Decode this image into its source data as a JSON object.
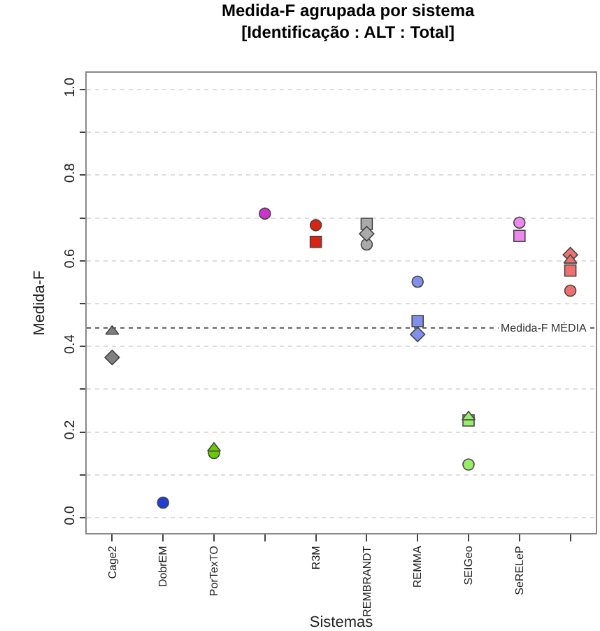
{
  "chart_data": {
    "type": "scatter",
    "title": "Medida-F agrupada por sistema\n[Identificação : ALT : Total]",
    "xlabel": "Sistemas",
    "ylabel": "Medida-F",
    "categories": [
      "Cage2",
      "DobrEM",
      "PorTexTO",
      null,
      "R3M",
      "REMBRANDT",
      "REMMA",
      "SEIGeo",
      "SeRELeP",
      null
    ],
    "series": [
      {
        "marker": "circle",
        "values": [
          null,
          0.035,
          0.151,
          0.71,
          0.683,
          0.638,
          0.551,
          0.124,
          0.689,
          0.53
        ],
        "colors": [
          "#808080",
          "#1f3fd8",
          "#66cc00",
          "#cc33cc",
          "#dd2211",
          "#aaaaaa",
          "#7f8fea",
          "#99ee66",
          "#ee88ee",
          "#f07070"
        ]
      },
      {
        "marker": "square",
        "values": [
          null,
          null,
          null,
          null,
          0.644,
          0.686,
          0.459,
          0.227,
          0.658,
          0.577
        ],
        "colors": [
          "#808080",
          "#1f3fd8",
          "#66cc00",
          "#cc33cc",
          "#dd2211",
          "#aaaaaa",
          "#7f8fea",
          "#99ee66",
          "#ee88ee",
          "#f07070"
        ]
      },
      {
        "marker": "diamond",
        "values": [
          0.374,
          null,
          null,
          null,
          null,
          0.663,
          0.428,
          null,
          null,
          0.614
        ],
        "colors": [
          "#808080",
          "#1f3fd8",
          "#66cc00",
          "#cc33cc",
          "#dd2211",
          "#aaaaaa",
          "#7f8fea",
          "#99ee66",
          "#ee88ee",
          "#f07070"
        ]
      },
      {
        "marker": "triangle",
        "values": [
          0.435,
          null,
          0.162,
          null,
          null,
          null,
          null,
          0.235,
          null,
          0.601
        ],
        "colors": [
          "#808080",
          "#1f3fd8",
          "#66cc00",
          "#cc33cc",
          "#dd2211",
          "#aaaaaa",
          "#7f8fea",
          "#99ee66",
          "#ee88ee",
          "#f07070"
        ]
      }
    ],
    "ylim": [
      -0.036,
      1.039
    ],
    "yticks": [
      {
        "value": 0.0,
        "label": "0.0"
      },
      {
        "value": 0.1,
        "label": null
      },
      {
        "value": 0.2,
        "label": "0.2"
      },
      {
        "value": 0.3,
        "label": null
      },
      {
        "value": 0.4,
        "label": "0.4"
      },
      {
        "value": 0.5,
        "label": null
      },
      {
        "value": 0.6,
        "label": "0.6"
      },
      {
        "value": 0.7,
        "label": null
      },
      {
        "value": 0.8,
        "label": "0.8"
      },
      {
        "value": 0.9,
        "label": null
      },
      {
        "value": 1.0,
        "label": "1.0"
      }
    ],
    "grid": "y",
    "ref_lines": [
      {
        "axis": "y",
        "value": 0.443,
        "label": "Medida-F MÉDIA",
        "color": "#555555",
        "line_style": "dotted"
      }
    ]
  }
}
